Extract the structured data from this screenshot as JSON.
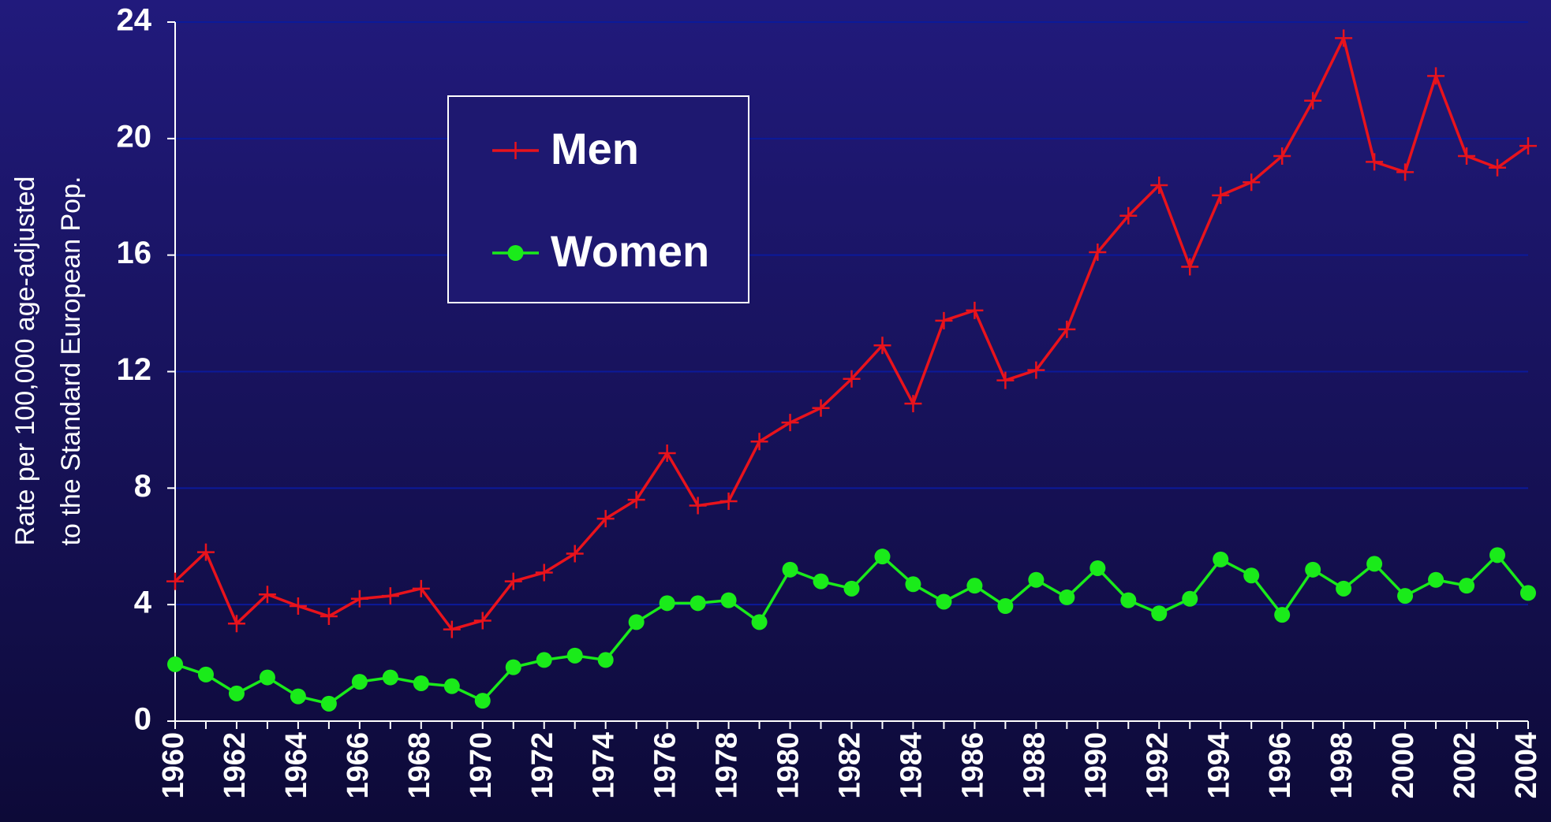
{
  "chart_data": {
    "type": "line",
    "y_label": [
      "Rate per 100,000 age-adjusted",
      "to the Standard European Pop."
    ],
    "x": [
      1960,
      1961,
      1962,
      1963,
      1964,
      1965,
      1966,
      1967,
      1968,
      1969,
      1970,
      1971,
      1972,
      1973,
      1974,
      1975,
      1976,
      1977,
      1978,
      1979,
      1980,
      1981,
      1982,
      1983,
      1984,
      1985,
      1986,
      1987,
      1988,
      1989,
      1990,
      1991,
      1992,
      1993,
      1994,
      1995,
      1996,
      1997,
      1998,
      1999,
      2000,
      2001,
      2002,
      2003,
      2004
    ],
    "series": [
      {
        "name": "Men",
        "color": "#e8131c",
        "marker": "plus",
        "values": [
          4.8,
          5.8,
          3.35,
          4.35,
          3.95,
          3.6,
          4.2,
          4.3,
          4.55,
          3.15,
          3.45,
          4.8,
          5.1,
          5.75,
          6.95,
          7.6,
          9.2,
          7.4,
          7.55,
          9.6,
          10.25,
          10.75,
          11.75,
          12.9,
          10.9,
          13.75,
          14.1,
          11.7,
          12.05,
          13.45,
          16.1,
          17.35,
          18.4,
          15.6,
          18.05,
          18.5,
          19.4,
          21.3,
          23.45,
          19.2,
          18.85,
          22.15,
          19.4,
          19.0,
          19.75
        ]
      },
      {
        "name": "Women",
        "color": "#1aeb1a",
        "marker": "circle",
        "values": [
          1.95,
          1.6,
          0.95,
          1.5,
          0.85,
          0.6,
          1.35,
          1.5,
          1.3,
          1.2,
          0.7,
          1.85,
          2.1,
          2.25,
          2.1,
          3.4,
          4.05,
          4.05,
          4.15,
          3.4,
          5.2,
          4.8,
          4.55,
          5.65,
          4.7,
          4.1,
          4.65,
          3.95,
          4.85,
          4.25,
          5.25,
          4.15,
          3.7,
          4.2,
          5.55,
          5.0,
          3.65,
          5.2,
          4.55,
          5.4,
          4.3,
          4.85,
          4.65,
          5.7,
          4.4
        ]
      }
    ],
    "xlim": [
      1960,
      2004
    ],
    "xticks": [
      1960,
      1962,
      1964,
      1966,
      1968,
      1970,
      1972,
      1974,
      1976,
      1978,
      1980,
      1982,
      1984,
      1986,
      1988,
      1990,
      1992,
      1994,
      1996,
      1998,
      2000,
      2002,
      2004
    ],
    "ylim": [
      0,
      24
    ],
    "yticks": [
      0,
      4,
      8,
      12,
      16,
      20,
      24
    ],
    "grid": true,
    "legend": "upper left"
  }
}
